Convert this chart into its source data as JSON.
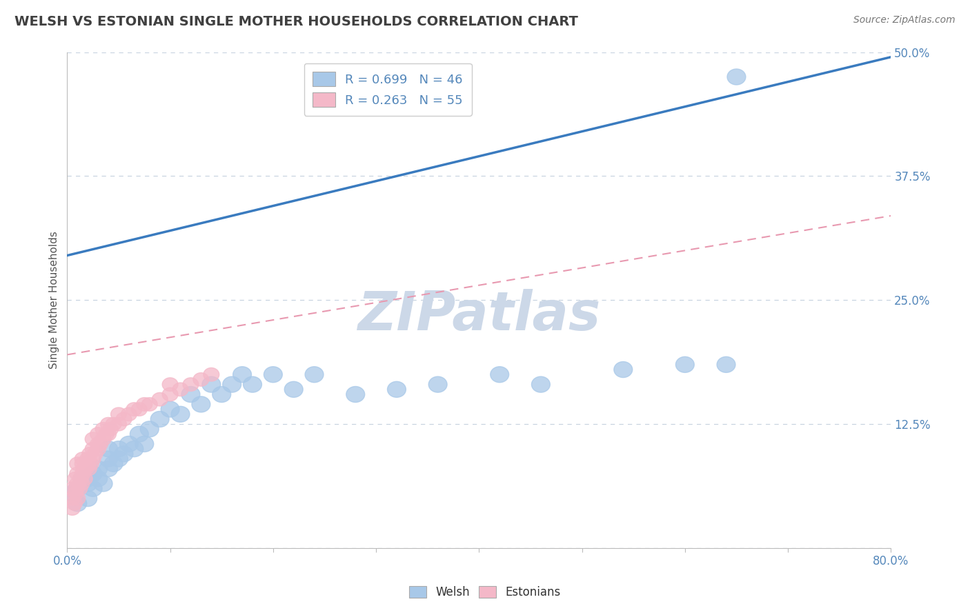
{
  "title": "WELSH VS ESTONIAN SINGLE MOTHER HOUSEHOLDS CORRELATION CHART",
  "source": "Source: ZipAtlas.com",
  "ylabel": "Single Mother Households",
  "xlim": [
    0.0,
    0.8
  ],
  "ylim": [
    0.0,
    0.5
  ],
  "xticks": [
    0.0,
    0.1,
    0.2,
    0.3,
    0.4,
    0.5,
    0.6,
    0.7,
    0.8
  ],
  "yticks": [
    0.0,
    0.125,
    0.25,
    0.375,
    0.5
  ],
  "welsh_R": 0.699,
  "welsh_N": 46,
  "estonian_R": 0.263,
  "estonian_N": 55,
  "welsh_color": "#a8c8e8",
  "estonian_color": "#f4b8c8",
  "welsh_line_color": "#3a7bbf",
  "estonian_line_color": "#e899b0",
  "background_color": "#ffffff",
  "grid_color": "#c8d4e0",
  "title_color": "#404040",
  "axis_label_color": "#5588bb",
  "watermark_color": "#ccd8e8",
  "watermark": "ZIPatlas",
  "welsh_line_x0": 0.0,
  "welsh_line_y0": 0.295,
  "welsh_line_x1": 0.8,
  "welsh_line_y1": 0.495,
  "estonian_line_x0": 0.0,
  "estonian_line_y0": 0.195,
  "estonian_line_x1": 0.8,
  "estonian_line_y1": 0.335,
  "welsh_x": [
    0.005,
    0.01,
    0.01,
    0.015,
    0.02,
    0.02,
    0.02,
    0.025,
    0.025,
    0.03,
    0.03,
    0.035,
    0.04,
    0.04,
    0.04,
    0.045,
    0.05,
    0.05,
    0.055,
    0.06,
    0.065,
    0.07,
    0.075,
    0.08,
    0.09,
    0.1,
    0.11,
    0.12,
    0.13,
    0.14,
    0.15,
    0.16,
    0.17,
    0.18,
    0.2,
    0.22,
    0.24,
    0.28,
    0.32,
    0.36,
    0.42,
    0.46,
    0.54,
    0.6,
    0.64,
    0.65
  ],
  "welsh_y": [
    0.055,
    0.06,
    0.045,
    0.07,
    0.05,
    0.065,
    0.07,
    0.06,
    0.075,
    0.07,
    0.08,
    0.065,
    0.08,
    0.09,
    0.1,
    0.085,
    0.09,
    0.1,
    0.095,
    0.105,
    0.1,
    0.115,
    0.105,
    0.12,
    0.13,
    0.14,
    0.135,
    0.155,
    0.145,
    0.165,
    0.155,
    0.165,
    0.175,
    0.165,
    0.175,
    0.16,
    0.175,
    0.155,
    0.16,
    0.165,
    0.175,
    0.165,
    0.18,
    0.185,
    0.185,
    0.475
  ],
  "estonian_x": [
    0.005,
    0.005,
    0.005,
    0.007,
    0.008,
    0.008,
    0.009,
    0.01,
    0.01,
    0.01,
    0.01,
    0.012,
    0.013,
    0.014,
    0.015,
    0.015,
    0.015,
    0.016,
    0.017,
    0.018,
    0.02,
    0.02,
    0.021,
    0.022,
    0.023,
    0.025,
    0.025,
    0.025,
    0.027,
    0.03,
    0.03,
    0.03,
    0.032,
    0.035,
    0.035,
    0.038,
    0.04,
    0.04,
    0.042,
    0.045,
    0.05,
    0.05,
    0.055,
    0.06,
    0.065,
    0.07,
    0.075,
    0.08,
    0.09,
    0.1,
    0.1,
    0.11,
    0.12,
    0.13,
    0.14
  ],
  "estonian_y": [
    0.04,
    0.05,
    0.06,
    0.045,
    0.055,
    0.07,
    0.06,
    0.05,
    0.065,
    0.075,
    0.085,
    0.06,
    0.07,
    0.065,
    0.075,
    0.085,
    0.09,
    0.08,
    0.07,
    0.08,
    0.085,
    0.09,
    0.08,
    0.095,
    0.085,
    0.09,
    0.1,
    0.11,
    0.095,
    0.1,
    0.105,
    0.115,
    0.105,
    0.11,
    0.12,
    0.115,
    0.115,
    0.125,
    0.12,
    0.125,
    0.125,
    0.135,
    0.13,
    0.135,
    0.14,
    0.14,
    0.145,
    0.145,
    0.15,
    0.155,
    0.165,
    0.16,
    0.165,
    0.17,
    0.175
  ]
}
